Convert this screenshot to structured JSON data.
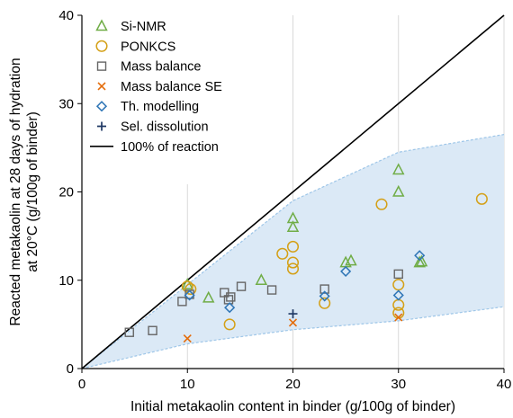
{
  "chart_data": {
    "type": "scatter",
    "xlabel": "Initial metakaolin content in binder (g/100g of binder)",
    "ylabel_lines": [
      "Reacted metakaolin at 28 days of hydration",
      "at 20°C (g/100g of binder)"
    ],
    "xlim": [
      0,
      40
    ],
    "ylim": [
      0,
      40
    ],
    "x_ticks": [
      0,
      10,
      20,
      30,
      40
    ],
    "y_ticks": [
      0,
      10,
      20,
      30,
      40
    ],
    "grid": "vertical",
    "legend_position": "top-left",
    "reference_line": {
      "name": "100% of reaction",
      "color": "#000000",
      "points": [
        [
          0,
          0
        ],
        [
          40,
          40
        ]
      ]
    },
    "band": {
      "color": "#dbe9f6",
      "edge_color": "#9ec6e8",
      "upper": [
        [
          0,
          0
        ],
        [
          20,
          19
        ],
        [
          30,
          24.5
        ],
        [
          40,
          26.5
        ]
      ],
      "lower": [
        [
          0,
          0
        ],
        [
          10,
          2.8
        ],
        [
          20,
          4.4
        ],
        [
          30,
          5.4
        ],
        [
          40,
          7
        ]
      ]
    },
    "series": [
      {
        "name": "Si-NMR",
        "marker": "triangle",
        "color": "#70ad47",
        "points": [
          [
            10,
            9.5
          ],
          [
            12,
            8
          ],
          [
            17,
            10
          ],
          [
            20,
            17
          ],
          [
            20,
            16
          ],
          [
            25,
            12
          ],
          [
            25.5,
            12.2
          ],
          [
            30,
            22.5
          ],
          [
            30,
            20
          ],
          [
            32,
            12
          ],
          [
            32.2,
            12.1
          ]
        ]
      },
      {
        "name": "PONKCS",
        "marker": "circle",
        "color": "#d4a017",
        "points": [
          [
            10,
            9.3
          ],
          [
            10.3,
            9
          ],
          [
            14,
            5
          ],
          [
            19,
            13
          ],
          [
            20,
            13.8
          ],
          [
            20,
            12
          ],
          [
            20,
            11.3
          ],
          [
            23,
            7.4
          ],
          [
            28.4,
            18.6
          ],
          [
            30,
            9.5
          ],
          [
            30,
            7.2
          ],
          [
            30,
            6.3
          ],
          [
            37.9,
            19.2
          ]
        ]
      },
      {
        "name": "Mass balance",
        "marker": "square",
        "color": "#666666",
        "points": [
          [
            4.5,
            4.1
          ],
          [
            6.7,
            4.3
          ],
          [
            9.5,
            7.6
          ],
          [
            10.2,
            8.4
          ],
          [
            13.5,
            8.6
          ],
          [
            13.9,
            7.8
          ],
          [
            14.1,
            8.1
          ],
          [
            15.1,
            9.3
          ],
          [
            18,
            8.9
          ],
          [
            23,
            9
          ],
          [
            30,
            10.7
          ]
        ]
      },
      {
        "name": "Mass balance SE",
        "marker": "x",
        "color": "#e46c0a",
        "points": [
          [
            10,
            3.4
          ],
          [
            20,
            5.2
          ],
          [
            30,
            5.8
          ]
        ]
      },
      {
        "name": "Th. modelling",
        "marker": "diamond",
        "color": "#2e75b6",
        "points": [
          [
            10.2,
            8.3
          ],
          [
            14,
            6.9
          ],
          [
            23,
            8.2
          ],
          [
            25,
            11
          ],
          [
            30,
            8.3
          ],
          [
            32,
            12.8
          ]
        ]
      },
      {
        "name": "Sel. dissolution",
        "marker": "plus",
        "color": "#1f3864",
        "points": [
          [
            20,
            6.2
          ]
        ]
      }
    ]
  }
}
